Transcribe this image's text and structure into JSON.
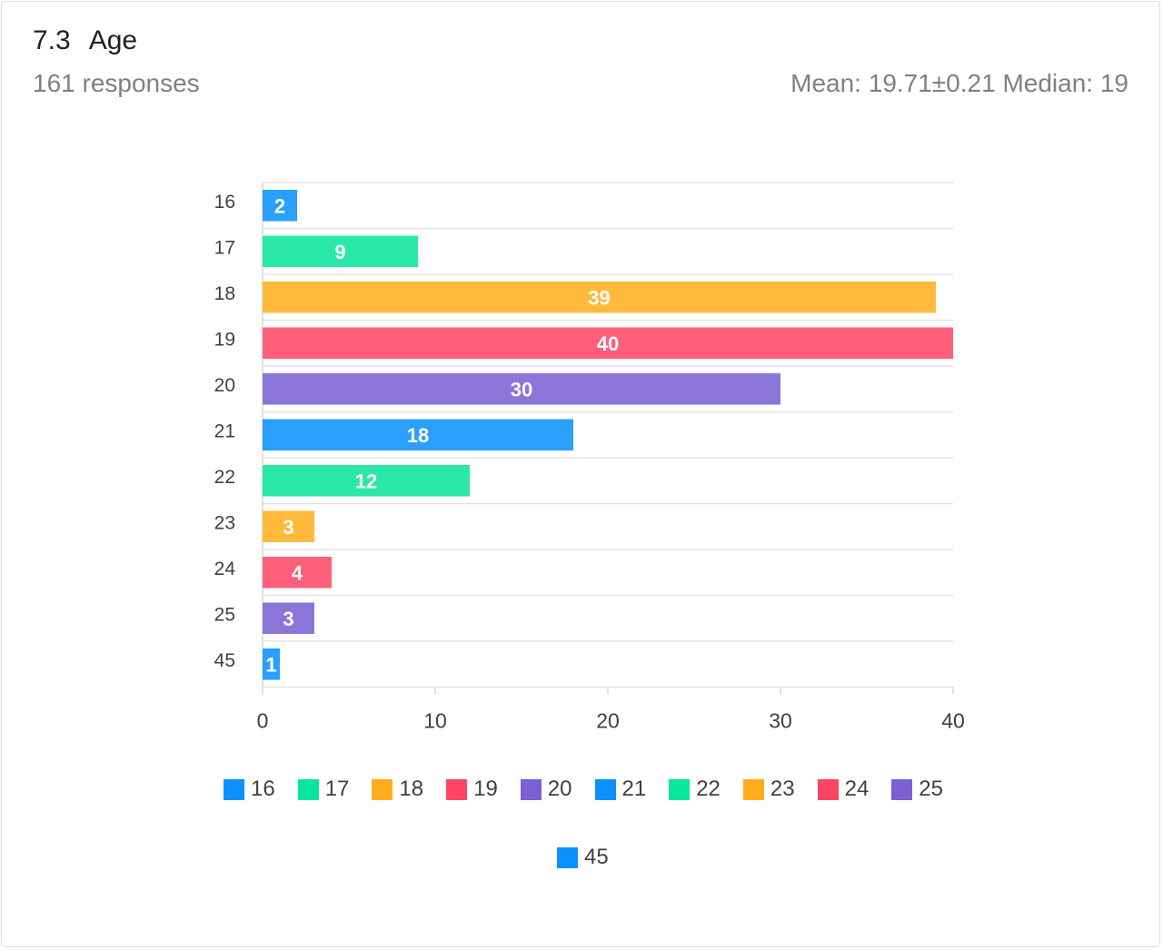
{
  "header": {
    "number": "7.3",
    "title": "Age",
    "responses": "161 responses",
    "stats": "Mean: 19.71±0.21 Median: 19"
  },
  "chart_data": {
    "type": "bar",
    "orientation": "horizontal",
    "categories": [
      "16",
      "17",
      "18",
      "19",
      "20",
      "21",
      "22",
      "23",
      "24",
      "25",
      "45"
    ],
    "values": [
      2,
      9,
      39,
      40,
      30,
      18,
      12,
      3,
      4,
      3,
      1
    ],
    "xlim": [
      0,
      40
    ],
    "xticks": [
      "0",
      "10",
      "20",
      "30",
      "40"
    ],
    "grid": "horizontal",
    "legend_position": "bottom",
    "colors": [
      "#2a9ffd",
      "#2ae8a8",
      "#ffba3b",
      "#ff5f78",
      "#8a76d9",
      "#2a9ffd",
      "#2ae8a8",
      "#ffba3b",
      "#ff5f78",
      "#8a76d9",
      "#2a9ffd"
    ],
    "legend_colors": [
      "#0b90fe",
      "#08e59d",
      "#ffad1c",
      "#ff4562",
      "#7b5fd4",
      "#0b90fe",
      "#08e59d",
      "#ffad1c",
      "#ff4562",
      "#7b5fd4",
      "#0b90fe"
    ]
  }
}
